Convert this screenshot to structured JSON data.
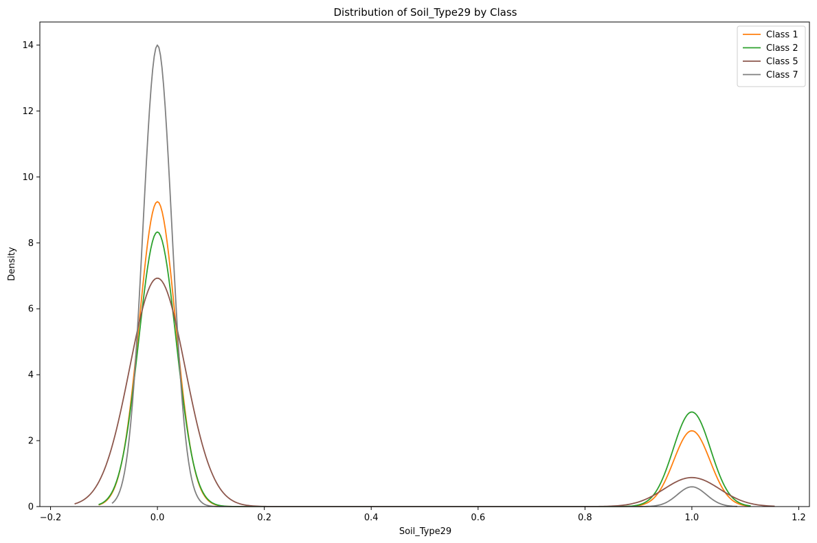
{
  "chart_data": {
    "type": "line",
    "title": "Distribution of Soil_Type29 by Class",
    "xlabel": "Soil_Type29",
    "ylabel": "Density",
    "xlim": [
      -0.22,
      1.22
    ],
    "ylim": [
      0,
      14.7
    ],
    "xticks": [
      -0.2,
      0.0,
      0.2,
      0.4,
      0.6,
      0.8,
      1.0,
      1.2
    ],
    "xtick_labels": [
      "−0.2",
      "0.0",
      "0.2",
      "0.4",
      "0.6",
      "0.8",
      "1.0",
      "1.2"
    ],
    "yticks": [
      0,
      2,
      4,
      6,
      8,
      10,
      12,
      14
    ],
    "ytick_labels": [
      "0",
      "2",
      "4",
      "6",
      "8",
      "10",
      "12",
      "14"
    ],
    "grid": false,
    "legend_position": "top-right",
    "series": [
      {
        "name": "Class 1",
        "color": "#ff7f0e",
        "peak0": 9.25,
        "peak1": 2.3,
        "sigma": 0.034,
        "x_range": [
          -0.11,
          1.11
        ]
      },
      {
        "name": "Class 2",
        "color": "#2ca02c",
        "peak0": 8.33,
        "peak1": 2.87,
        "sigma": 0.035,
        "x_range": [
          -0.11,
          1.11
        ]
      },
      {
        "name": "Class 5",
        "color": "#8c564b",
        "peak0": 6.93,
        "peak1": 0.88,
        "sigma": 0.052,
        "x_range": [
          -0.155,
          1.155
        ]
      },
      {
        "name": "Class 7",
        "color": "#7f7f7f",
        "peak0": 14.0,
        "peak1": 0.6,
        "sigma": 0.027,
        "x_range": [
          -0.085,
          1.085
        ]
      }
    ]
  }
}
